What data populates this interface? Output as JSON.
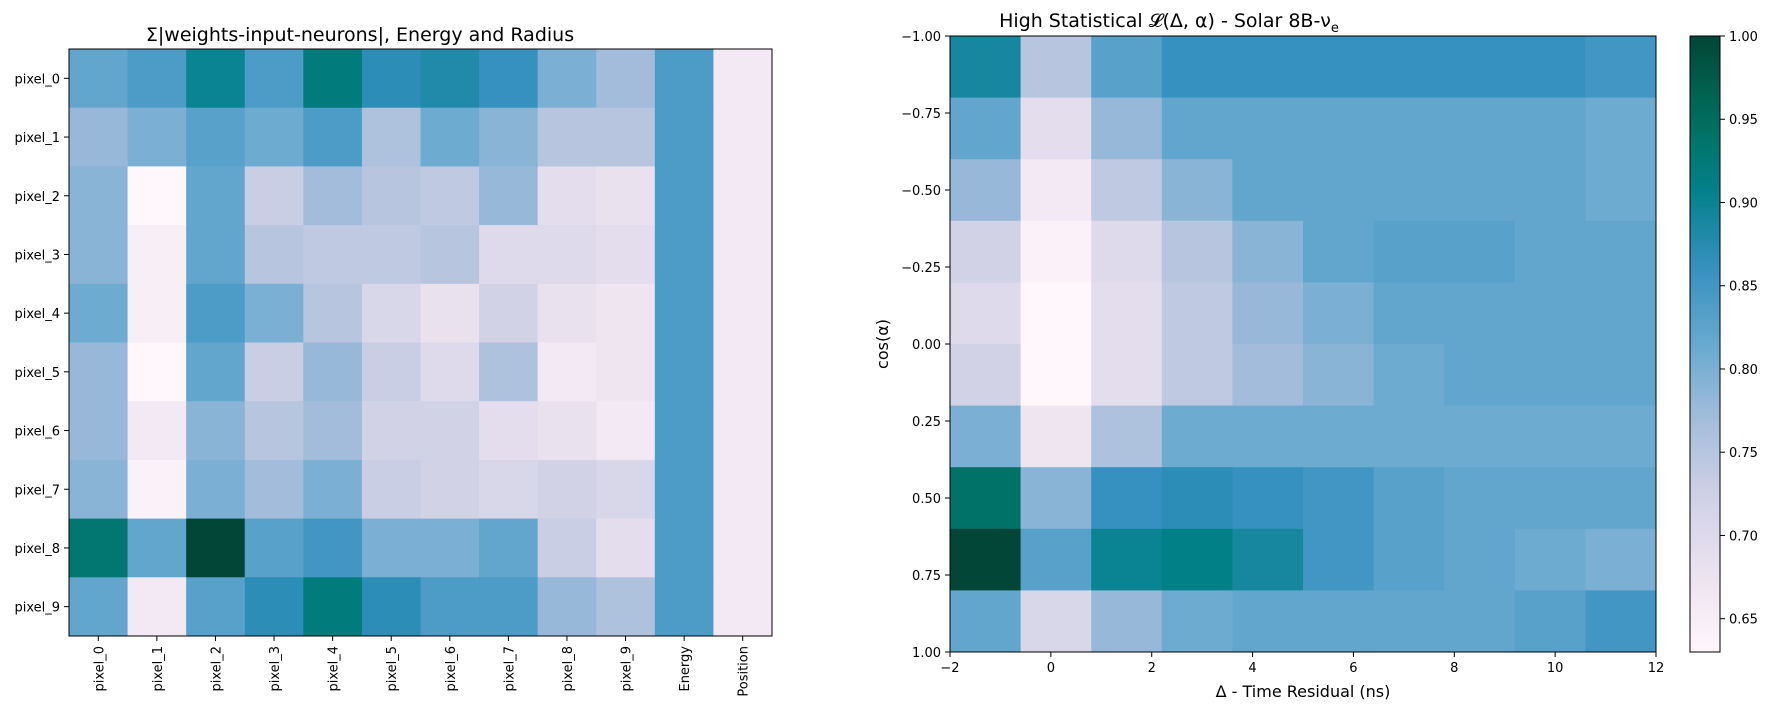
{
  "chart_data": [
    {
      "type": "heatmap",
      "title": "Σ|weights-input-neurons|, Energy and Radius",
      "x_categories": [
        "pixel_0",
        "pixel_1",
        "pixel_2",
        "pixel_3",
        "pixel_4",
        "pixel_5",
        "pixel_6",
        "pixel_7",
        "pixel_8",
        "pixel_9",
        "Energy",
        "Position"
      ],
      "y_categories": [
        "pixel_0",
        "pixel_1",
        "pixel_2",
        "pixel_3",
        "pixel_4",
        "pixel_5",
        "pixel_6",
        "pixel_7",
        "pixel_8",
        "pixel_9"
      ],
      "colormap": "PuBuGn",
      "vmin": 0.63,
      "vmax": 1.0,
      "values": [
        [
          0.82,
          0.84,
          0.9,
          0.84,
          0.92,
          0.87,
          0.88,
          0.86,
          0.8,
          0.77,
          0.84,
          0.66
        ],
        [
          0.78,
          0.8,
          0.83,
          0.81,
          0.84,
          0.76,
          0.81,
          0.79,
          0.75,
          0.75,
          0.84,
          0.66
        ],
        [
          0.79,
          0.63,
          0.82,
          0.73,
          0.77,
          0.75,
          0.74,
          0.78,
          0.69,
          0.68,
          0.84,
          0.66
        ],
        [
          0.79,
          0.65,
          0.82,
          0.75,
          0.74,
          0.74,
          0.75,
          0.7,
          0.7,
          0.69,
          0.84,
          0.66
        ],
        [
          0.81,
          0.65,
          0.84,
          0.8,
          0.75,
          0.71,
          0.68,
          0.72,
          0.68,
          0.67,
          0.84,
          0.66
        ],
        [
          0.78,
          0.63,
          0.82,
          0.73,
          0.78,
          0.73,
          0.7,
          0.76,
          0.66,
          0.67,
          0.84,
          0.66
        ],
        [
          0.78,
          0.66,
          0.79,
          0.75,
          0.77,
          0.72,
          0.72,
          0.69,
          0.68,
          0.66,
          0.84,
          0.66
        ],
        [
          0.79,
          0.64,
          0.8,
          0.77,
          0.8,
          0.73,
          0.72,
          0.71,
          0.72,
          0.71,
          0.84,
          0.66
        ],
        [
          0.93,
          0.82,
          1.0,
          0.83,
          0.85,
          0.8,
          0.8,
          0.82,
          0.73,
          0.69,
          0.84,
          0.66
        ],
        [
          0.82,
          0.66,
          0.83,
          0.87,
          0.92,
          0.87,
          0.84,
          0.84,
          0.78,
          0.76,
          0.84,
          0.66
        ]
      ]
    },
    {
      "type": "heatmap",
      "title": "High Statistical 𝓛(Δ, α) - Solar 8B-ν",
      "title_subscript": "e",
      "xlabel": "Δ - Time Residual (ns)",
      "ylabel": "cos(α)",
      "xlim": [
        -2,
        12
      ],
      "ylim": [
        -1.0,
        1.0
      ],
      "x_ticks": [
        "−2",
        "0",
        "2",
        "4",
        "6",
        "8",
        "10",
        "12"
      ],
      "y_ticks": [
        "−1.00",
        "−0.75",
        "−0.50",
        "−0.25",
        "0.00",
        "0.25",
        "0.50",
        "0.75",
        "1.00"
      ],
      "colormap": "PuBuGn",
      "vmin": 0.63,
      "vmax": 1.0,
      "values": [
        [
          0.89,
          0.75,
          0.83,
          0.86,
          0.86,
          0.86,
          0.86,
          0.86,
          0.86,
          0.85
        ],
        [
          0.82,
          0.69,
          0.78,
          0.82,
          0.82,
          0.82,
          0.82,
          0.82,
          0.82,
          0.81
        ],
        [
          0.78,
          0.66,
          0.74,
          0.79,
          0.82,
          0.82,
          0.82,
          0.82,
          0.82,
          0.81
        ],
        [
          0.72,
          0.64,
          0.7,
          0.75,
          0.79,
          0.82,
          0.83,
          0.83,
          0.82,
          0.82
        ],
        [
          0.7,
          0.63,
          0.69,
          0.74,
          0.78,
          0.8,
          0.82,
          0.82,
          0.82,
          0.82
        ],
        [
          0.72,
          0.63,
          0.69,
          0.74,
          0.77,
          0.79,
          0.81,
          0.82,
          0.82,
          0.82
        ],
        [
          0.8,
          0.67,
          0.76,
          0.81,
          0.81,
          0.81,
          0.81,
          0.81,
          0.81,
          0.81
        ],
        [
          0.94,
          0.79,
          0.86,
          0.87,
          0.86,
          0.85,
          0.83,
          0.82,
          0.82,
          0.82
        ],
        [
          1.0,
          0.83,
          0.9,
          0.91,
          0.89,
          0.85,
          0.83,
          0.82,
          0.81,
          0.8
        ],
        [
          0.82,
          0.71,
          0.78,
          0.81,
          0.82,
          0.82,
          0.82,
          0.82,
          0.83,
          0.85
        ]
      ]
    }
  ],
  "colorbar": {
    "ticks": [
      "0.65",
      "0.70",
      "0.75",
      "0.80",
      "0.85",
      "0.90",
      "0.95",
      "1.00"
    ],
    "tick_values": [
      0.65,
      0.7,
      0.75,
      0.8,
      0.85,
      0.9,
      0.95,
      1.0
    ]
  }
}
